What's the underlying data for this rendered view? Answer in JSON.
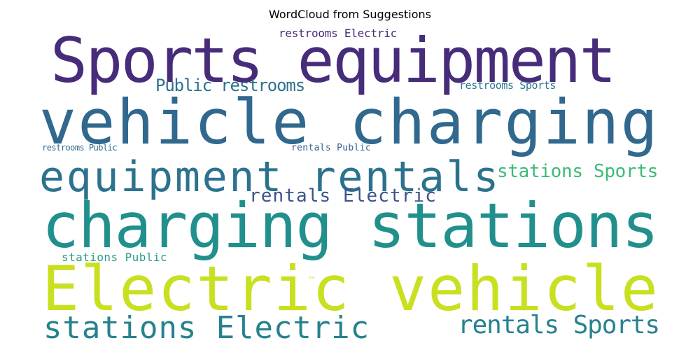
{
  "title": "WordCloud from Suggestions",
  "words": [
    {
      "text": "Sports equipment",
      "color": "#472c7a"
    },
    {
      "text": "vehicle charging",
      "color": "#31688e"
    },
    {
      "text": "equipment rentals",
      "color": "#2c728e"
    },
    {
      "text": "charging stations",
      "color": "#21908d"
    },
    {
      "text": "Electric vehicle",
      "color": "#c8e020"
    },
    {
      "text": "stations Electric",
      "color": "#26828e"
    },
    {
      "text": "rentals Sports",
      "color": "#26828e"
    },
    {
      "text": "Public restrooms",
      "color": "#2c728e"
    },
    {
      "text": "stations Sports",
      "color": "#3bbb75"
    },
    {
      "text": "rentals Electric",
      "color": "#3b528b"
    },
    {
      "text": "restrooms Electric",
      "color": "#482979"
    },
    {
      "text": "restrooms Sports",
      "color": "#2a788e"
    },
    {
      "text": "stations Public",
      "color": "#2a9b87"
    },
    {
      "text": "restrooms Public",
      "color": "#31688e"
    },
    {
      "text": "rentals Public",
      "color": "#35608d"
    },
    {
      "text": "Pub",
      "color": "#b5de2b"
    }
  ]
}
